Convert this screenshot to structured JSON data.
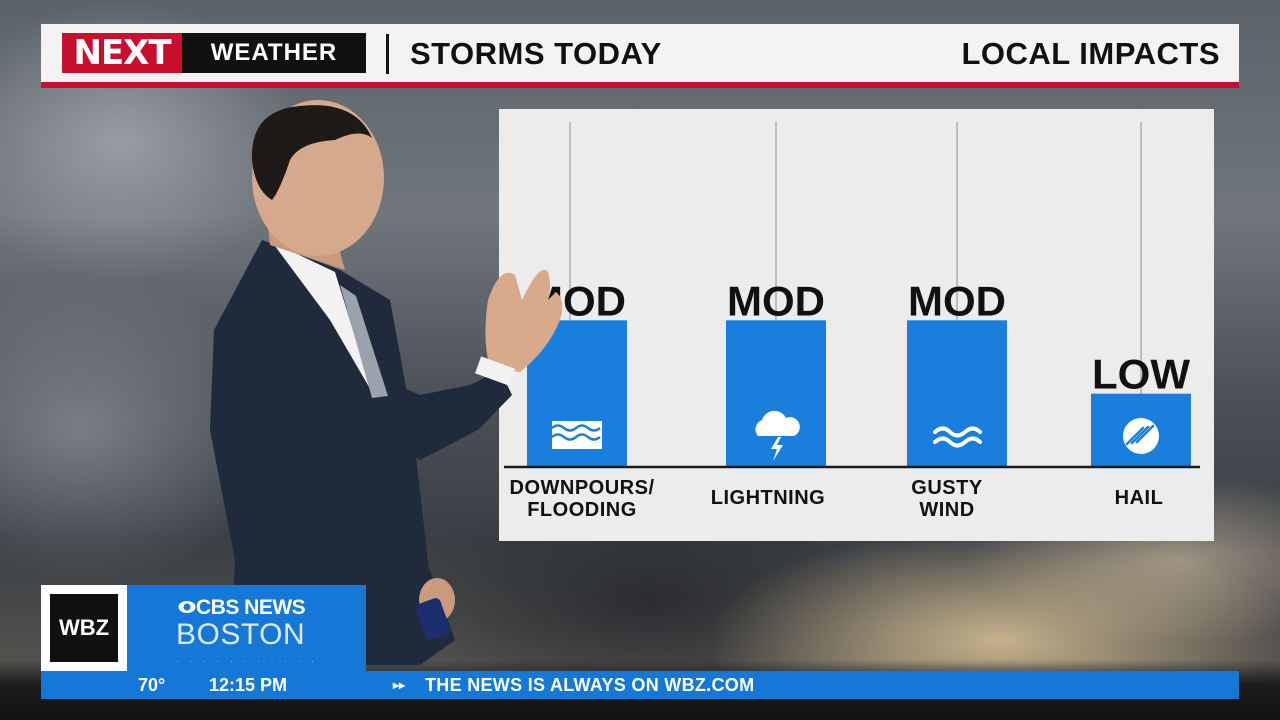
{
  "banner": {
    "logo_next": "NEXT",
    "logo_weather": "WEATHER",
    "title": "STORMS TODAY",
    "right_title": "LOCAL IMPACTS"
  },
  "chart_data": {
    "type": "bar",
    "categories": [
      "DOWNPOURS/\nFLOODING",
      "LIGHTNING",
      "GUSTY\nWIND",
      "HAIL"
    ],
    "values": [
      2,
      2,
      2,
      1
    ],
    "value_labels": [
      "MOD",
      "MOD",
      "MOD",
      "LOW"
    ],
    "ylim": [
      0,
      3
    ],
    "icons": [
      "water-waves-icon",
      "lightning-cloud-icon",
      "wind-icon",
      "hail-icon"
    ],
    "colors": {
      "bar": "#1a7fdc",
      "label": "#111111",
      "panel": "#ececec"
    }
  },
  "lower_third": {
    "station": "WBZ",
    "network": "CBS NEWS",
    "city": "BOSTON"
  },
  "ticker": {
    "temperature": "70°",
    "time": "12:15 PM",
    "arrow": "▸▸",
    "message": "THE NEWS IS ALWAYS ON WBZ.COM"
  }
}
